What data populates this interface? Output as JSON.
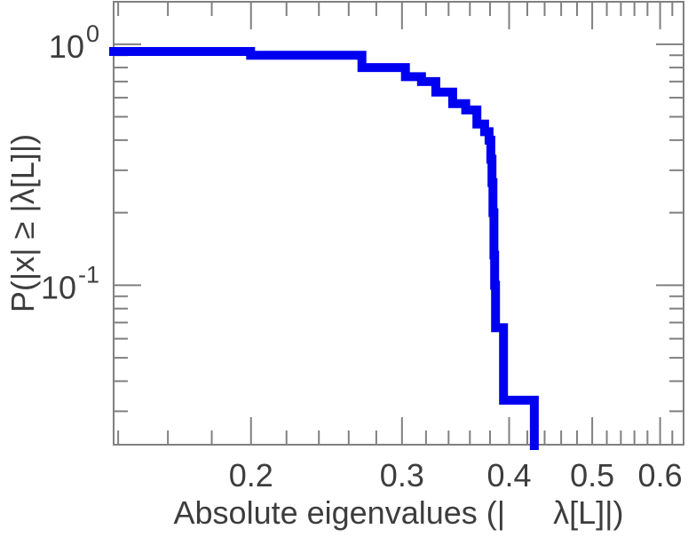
{
  "figure": {
    "background": "#ffffff",
    "axis_color": "#808080",
    "text_color": "#3d3d3d",
    "curve_color": "#0000f0"
  },
  "chart_data": {
    "type": "line",
    "subtype": "step-ccdf-staircase",
    "title": "",
    "xlabel": "Absolute eigenvalues (|  λ[L]|)",
    "ylabel": "P(|x| ≥ |λ[L]|)",
    "xscale": "log",
    "yscale": "log",
    "xlim": [
      0.1383,
      0.639
    ],
    "ylim": [
      0.0218,
      1.5
    ],
    "grid": false,
    "legend": "none",
    "x_ticks": {
      "major": [
        0.2,
        0.3,
        0.4,
        0.5,
        0.6
      ],
      "major_labels": [
        "0.2",
        "0.3",
        "0.4",
        "0.5",
        "0.6"
      ],
      "minor": [
        0.14,
        0.16,
        0.18,
        0.22,
        0.24,
        0.26,
        0.28,
        0.32,
        0.34,
        0.36,
        0.38,
        0.42,
        0.44,
        0.46,
        0.48,
        0.52,
        0.54,
        0.56,
        0.58,
        0.62
      ]
    },
    "y_ticks": {
      "major": [
        1,
        0.1
      ],
      "major_labels": [
        {
          "base": "10",
          "exp": "0"
        },
        {
          "base": "10",
          "exp": "-1"
        }
      ],
      "minor": [
        0.9,
        0.8,
        0.7,
        0.6,
        0.5,
        0.4,
        0.3,
        0.2,
        0.09,
        0.08,
        0.07,
        0.06,
        0.05,
        0.04,
        0.03
      ]
    },
    "series": [
      {
        "name": "absolute-eigenvalue-ccdf",
        "style": "steps-post",
        "levels": [
          [
            0.1383,
            0.93333
          ],
          [
            0.1998,
            0.9
          ],
          [
            0.2694,
            0.8
          ],
          [
            0.3028,
            0.73333
          ],
          [
            0.3161,
            0.7
          ],
          [
            0.3285,
            0.63333
          ],
          [
            0.3437,
            0.56667
          ],
          [
            0.356,
            0.53333
          ],
          [
            0.3668,
            0.46667
          ],
          [
            0.3745,
            0.43333
          ],
          [
            0.379,
            0.4
          ],
          [
            0.3808,
            0.33333
          ],
          [
            0.382,
            0.26667
          ],
          [
            0.383,
            0.2
          ],
          [
            0.384,
            0.13333
          ],
          [
            0.3848,
            0.1
          ],
          [
            0.3857,
            0.066667
          ],
          [
            0.394,
            0.033333
          ]
        ],
        "terminal_x": 0.428
      }
    ]
  }
}
